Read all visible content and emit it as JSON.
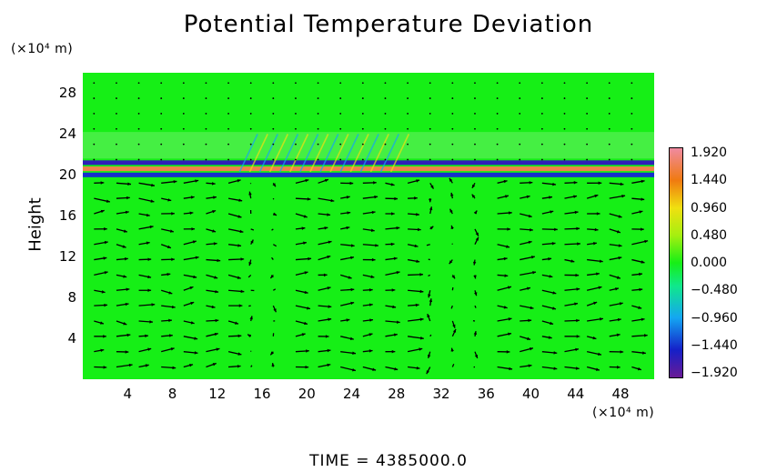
{
  "chart_data": {
    "type": "heatmap",
    "title": "Potential Temperature Deviation",
    "ylabel": "Height",
    "y_unit": "(×10⁴ m)",
    "x_unit": "(×10⁴ m)",
    "x_ticks": [
      4,
      8,
      12,
      16,
      20,
      24,
      28,
      32,
      36,
      40,
      44,
      48
    ],
    "y_ticks": [
      4,
      8,
      12,
      16,
      20,
      24,
      28
    ],
    "xlim": [
      0,
      51
    ],
    "ylim": [
      0,
      30
    ],
    "colorbar": {
      "ticks": [
        "1.920",
        "1.440",
        "0.960",
        "0.480",
        "0.000",
        "−0.480",
        "−0.960",
        "−1.440",
        "−1.920"
      ],
      "range": [
        -1.92,
        1.92
      ]
    },
    "field_features": {
      "background_value": 0.0,
      "inversion_layer_height": 20,
      "layer_values": [
        {
          "height": 21.2,
          "value": -1.6
        },
        {
          "height": 20.6,
          "value": 1.6
        },
        {
          "height": 20.0,
          "value": -1.4
        }
      ],
      "wave_zone": {
        "x_range": [
          14,
          28
        ],
        "height_range": [
          20,
          24
        ]
      },
      "low_level_overlay": "wind vectors below 20"
    },
    "overlay": "wind vectors",
    "footer": "TIME  =  4385000.0"
  }
}
